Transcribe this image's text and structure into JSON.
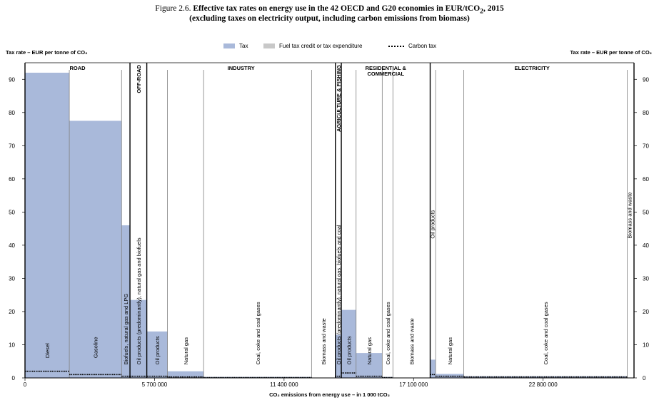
{
  "figure": {
    "prefix": "Figure 2.6.",
    "title": "Effective tax rates on energy use in the 42 OECD and G20 economies in EUR/tCO",
    "title_sub": "2",
    "title_suffix": ", 2015",
    "subtitle": "(excluding taxes on electricity output, including carbon emissions from biomass)"
  },
  "legend": {
    "tax": "Tax",
    "credit": "Fuel tax credit or tax expenditure",
    "carbon": "Carbon tax"
  },
  "colors": {
    "tax": "#a9b9da",
    "credit": "#c8c8c8",
    "carbon": "#000000",
    "line": "#000000",
    "thin": "#808080"
  },
  "axis": {
    "ylabel_left": "Tax rate – EUR per tonne of CO₂",
    "ylabel_right": "Tax rate – EUR per tonne of CO₂",
    "xlabel": "CO₂ emissions from energy use – in 1 000 tCO₂",
    "y_ticks": [
      0,
      10,
      20,
      30,
      40,
      50,
      60,
      70,
      80,
      90
    ],
    "x_ticks": [
      {
        "value": 0,
        "label": "0"
      },
      {
        "value": 5700000,
        "label": "5 700 000"
      },
      {
        "value": 11400000,
        "label": "11 400 000"
      },
      {
        "value": 17100000,
        "label": "17 100 000"
      },
      {
        "value": 22800000,
        "label": "22 800 000"
      }
    ],
    "ylim": [
      0,
      95
    ],
    "xlim": [
      0,
      26800000
    ]
  },
  "chart_data": {
    "type": "bar",
    "title": "Effective tax rates on energy use in the 42 OECD and G20 economies in EUR/tCO2, 2015",
    "xlabel": "CO₂ emissions from energy use – in 1 000 tCO₂",
    "ylabel": "Tax rate – EUR per tonne of CO₂",
    "sectors": [
      {
        "name": "ROAD",
        "start": 0,
        "end": 4620000
      },
      {
        "name": "OFF-ROAD",
        "start": 4620000,
        "end": 5360000,
        "vertical": true
      },
      {
        "name": "INDUSTRY",
        "start": 5360000,
        "end": 13660000
      },
      {
        "name": "AGRICULTURE & FISHING",
        "start": 13660000,
        "end": 13920000,
        "vertical": true
      },
      {
        "name": "RESIDENTIAL & COMMERCIAL",
        "start": 13920000,
        "end": 17830000
      },
      {
        "name": "ELECTRICITY",
        "start": 17830000,
        "end": 26800000
      }
    ],
    "segments": [
      {
        "label": "Diesel",
        "start": 0,
        "end": 1950000,
        "tax": 92,
        "carbon": 2,
        "label_y": 6
      },
      {
        "label": "Gasoline",
        "start": 1950000,
        "end": 4250000,
        "tax": 77.5,
        "carbon": 1,
        "label_y": 6
      },
      {
        "label": "Biofuels, natural gas and LPG",
        "start": 4250000,
        "end": 4620000,
        "tax": 46,
        "carbon": 0.5,
        "label_y": 4
      },
      {
        "label": "Oil products (predominantly), natural gas and biofuels",
        "start": 4620000,
        "end": 5360000,
        "tax": 23.5,
        "carbon": 0.5,
        "label_y": 4
      },
      {
        "label": "Oil products",
        "start": 5360000,
        "end": 6270000,
        "tax": 14,
        "carbon": 0.5,
        "label_y": 4
      },
      {
        "label": "Natural gas",
        "start": 6270000,
        "end": 7860000,
        "tax": 2,
        "carbon": 0.3,
        "label_y": 4
      },
      {
        "label": "Coal, coke and coal gases",
        "start": 7860000,
        "end": 12610000,
        "tax": 0.3,
        "carbon": 0.1,
        "label_y": 4
      },
      {
        "label": "Biomass and waste",
        "start": 12610000,
        "end": 13660000,
        "tax": 0,
        "carbon": 0,
        "label_y": 4
      },
      {
        "label": "Oil products (predominantly), natural gas, biofuels and coal",
        "start": 13660000,
        "end": 13920000,
        "tax": 13,
        "carbon": 0.5,
        "label_y": 4
      },
      {
        "label": "Oil products",
        "start": 13920000,
        "end": 14570000,
        "tax": 20.5,
        "carbon": 1.5,
        "label_y": 4
      },
      {
        "label": "Natural gas",
        "start": 14570000,
        "end": 15720000,
        "tax": 7.5,
        "carbon": 0.5,
        "label_y": 4
      },
      {
        "label": "Coal, coke and coal gases",
        "start": 15720000,
        "end": 16190000,
        "tax": 0.3,
        "carbon": 0.1,
        "label_y": 4
      },
      {
        "label": "Biomass and waste",
        "start": 16190000,
        "end": 17830000,
        "tax": 0,
        "carbon": 0,
        "label_y": 4
      },
      {
        "label": "Oil products",
        "start": 17830000,
        "end": 18070000,
        "tax": 5.5,
        "carbon": 1,
        "label_y": 42
      },
      {
        "label": "Natural gas",
        "start": 18070000,
        "end": 19310000,
        "tax": 1.2,
        "carbon": 0.5,
        "label_y": 4
      },
      {
        "label": "Coal, coke and coal gases",
        "start": 19310000,
        "end": 26500000,
        "tax": 0.5,
        "carbon": 0.3,
        "label_y": 4
      },
      {
        "label": "Biomass and waste",
        "start": 26500000,
        "end": 26800000,
        "tax": 0,
        "carbon": 0,
        "label_y": 42
      }
    ]
  }
}
